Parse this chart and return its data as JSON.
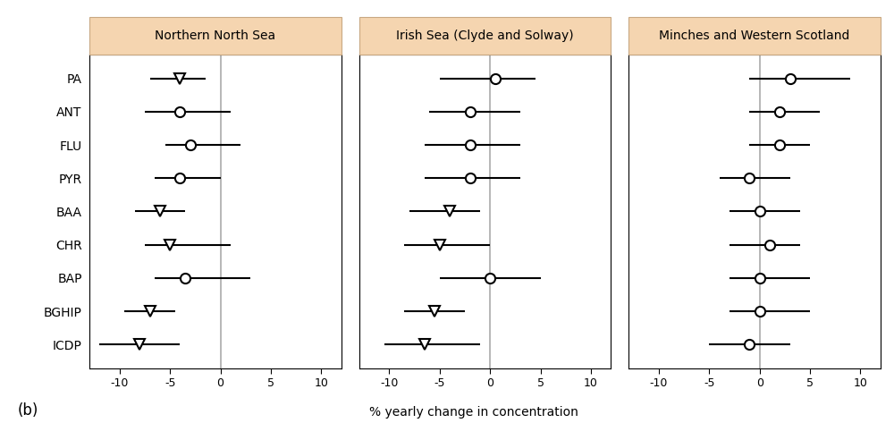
{
  "panels": [
    {
      "title": "Northern North Sea",
      "compounds": [
        "PA",
        "ANT",
        "FLU",
        "PYR",
        "BAA",
        "CHR",
        "BAP",
        "BGHIP",
        "ICDP"
      ],
      "centers": [
        -4.0,
        -4.0,
        -3.0,
        -4.0,
        -6.0,
        -5.0,
        -3.5,
        -7.0,
        -8.0
      ],
      "ci_low": [
        -7.0,
        -7.5,
        -5.5,
        -6.5,
        -8.5,
        -7.5,
        -6.5,
        -9.5,
        -12.0
      ],
      "ci_high": [
        -1.5,
        1.0,
        2.0,
        0.0,
        -3.5,
        1.0,
        3.0,
        -4.5,
        -4.0
      ],
      "markers": [
        "triangle",
        "circle",
        "circle",
        "circle",
        "triangle",
        "triangle",
        "circle",
        "triangle",
        "triangle"
      ]
    },
    {
      "title": "Irish Sea (Clyde and Solway)",
      "compounds": [
        "PA",
        "ANT",
        "FLU",
        "PYR",
        "BAA",
        "CHR",
        "BAP",
        "BGHIP",
        "ICDP"
      ],
      "centers": [
        0.5,
        -2.0,
        -2.0,
        -2.0,
        -4.0,
        -5.0,
        0.0,
        -5.5,
        -6.5
      ],
      "ci_low": [
        -5.0,
        -6.0,
        -6.5,
        -6.5,
        -8.0,
        -8.5,
        -5.0,
        -8.5,
        -10.5
      ],
      "ci_high": [
        4.5,
        3.0,
        3.0,
        3.0,
        -1.0,
        0.0,
        5.0,
        -2.5,
        -1.0
      ],
      "markers": [
        "circle",
        "circle",
        "circle",
        "circle",
        "triangle",
        "triangle",
        "circle",
        "triangle",
        "triangle"
      ]
    },
    {
      "title": "Minches and Western Scotland",
      "compounds": [
        "PA",
        "ANT",
        "FLU",
        "PYR",
        "BAA",
        "CHR",
        "BAP",
        "BGHIP",
        "ICDP"
      ],
      "centers": [
        3.0,
        2.0,
        2.0,
        -1.0,
        0.0,
        1.0,
        0.0,
        0.0,
        -1.0
      ],
      "ci_low": [
        -1.0,
        -1.0,
        -1.0,
        -4.0,
        -3.0,
        -3.0,
        -3.0,
        -3.0,
        -5.0
      ],
      "ci_high": [
        9.0,
        6.0,
        5.0,
        3.0,
        4.0,
        4.0,
        5.0,
        5.0,
        3.0
      ],
      "markers": [
        "circle",
        "circle",
        "circle",
        "circle",
        "circle",
        "circle",
        "circle",
        "circle",
        "circle"
      ]
    }
  ],
  "xlim": [
    -13,
    12
  ],
  "xticks": [
    -10,
    -5,
    0,
    5,
    10
  ],
  "xlabel": "% yearly change in concentration",
  "header_bg": "#f5d5b0",
  "header_edge": "#c8a882",
  "plot_bg": "#ffffff",
  "vline_color": "#aaaaaa",
  "marker_size": 8,
  "linewidth": 1.5,
  "label_b": "(b)",
  "title_fontsize": 10,
  "label_fontsize": 10,
  "tick_fontsize": 9,
  "compound_fontsize": 10
}
